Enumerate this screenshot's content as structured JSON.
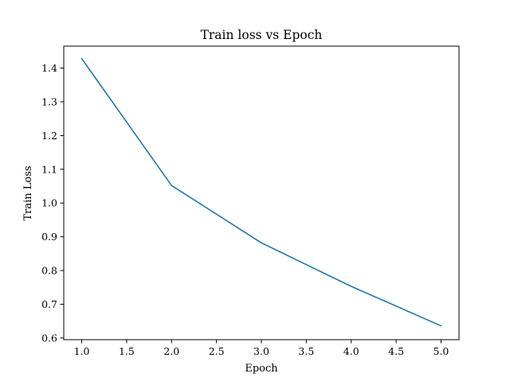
{
  "chart_data": {
    "type": "line",
    "title": "Train loss vs Epoch",
    "xlabel": "Epoch",
    "ylabel": "Train Loss",
    "xlim": [
      0.8,
      5.2
    ],
    "ylim": [
      0.595,
      1.465
    ],
    "xticks": [
      1.0,
      1.5,
      2.0,
      2.5,
      3.0,
      3.5,
      4.0,
      4.5,
      5.0
    ],
    "xtick_labels": [
      "1.0",
      "1.5",
      "2.0",
      "2.5",
      "3.0",
      "3.5",
      "4.0",
      "4.5",
      "5.0"
    ],
    "yticks": [
      0.6,
      0.7,
      0.8,
      0.9,
      1.0,
      1.1,
      1.2,
      1.3,
      1.4
    ],
    "ytick_labels": [
      "0.6",
      "0.7",
      "0.8",
      "0.9",
      "1.0",
      "1.1",
      "1.2",
      "1.3",
      "1.4"
    ],
    "grid": false,
    "legend": "none",
    "series": [
      {
        "color": "#1f77b4",
        "x": [
          1,
          2,
          3,
          4,
          5
        ],
        "y": [
          1.428,
          1.052,
          0.882,
          0.753,
          0.636
        ]
      }
    ]
  }
}
